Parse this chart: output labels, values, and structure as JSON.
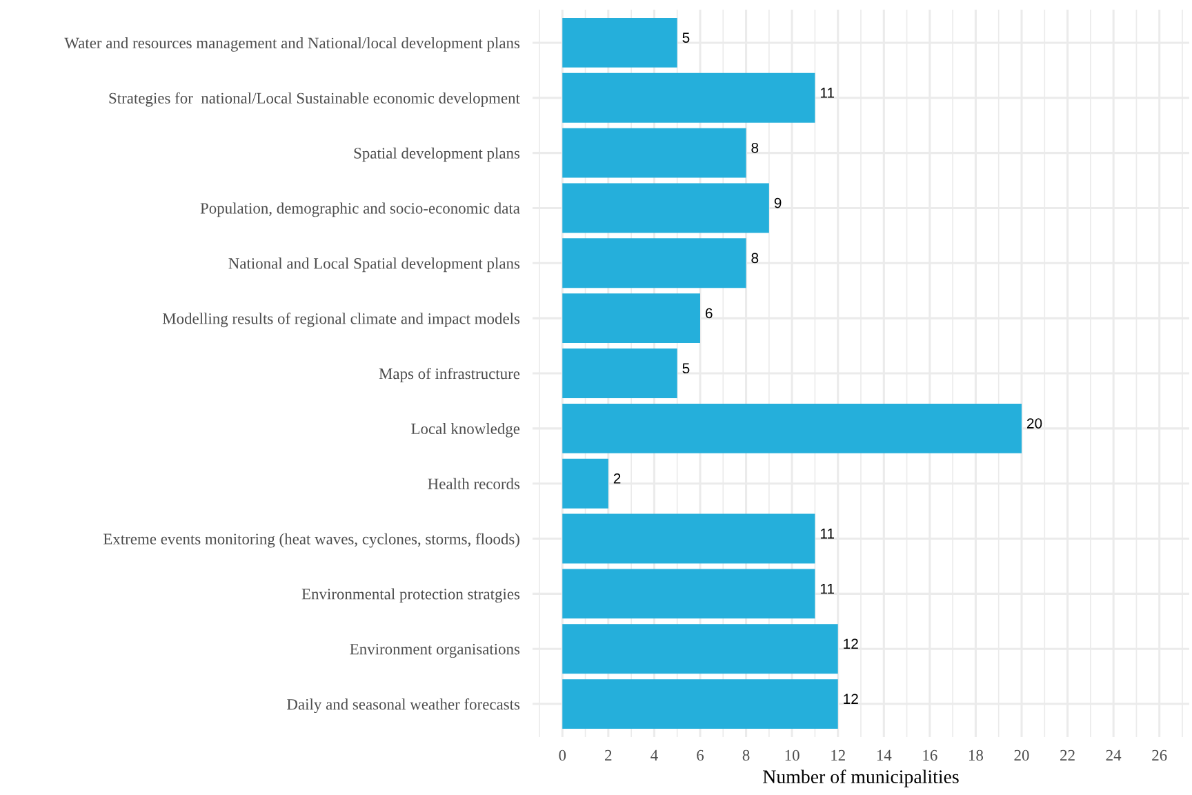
{
  "chart_data": {
    "type": "bar",
    "orientation": "horizontal",
    "categories": [
      "Water and resources management and National/local development plans",
      "Strategies for  national/Local Sustainable economic development",
      "Spatial development plans",
      "Population, demographic and socio-economic data",
      "National and Local Spatial development plans",
      "Modelling results of regional climate and impact models",
      "Maps of infrastructure",
      "Local knowledge",
      "Health records",
      "Extreme events monitoring (heat waves, cyclones, storms, floods)",
      "Environmental protection stratgies",
      "Environment organisations",
      "Daily and seasonal weather forecasts"
    ],
    "values": [
      5,
      11,
      8,
      9,
      8,
      6,
      5,
      20,
      2,
      11,
      11,
      12,
      12
    ],
    "color": "#25afdb",
    "xlabel": "Number of municipalities",
    "xlim": [
      -1.3,
      27.3
    ],
    "xticks": [
      0,
      2,
      4,
      6,
      8,
      10,
      12,
      14,
      16,
      18,
      20,
      22,
      24,
      26
    ],
    "grid": true,
    "data_labels": true
  }
}
